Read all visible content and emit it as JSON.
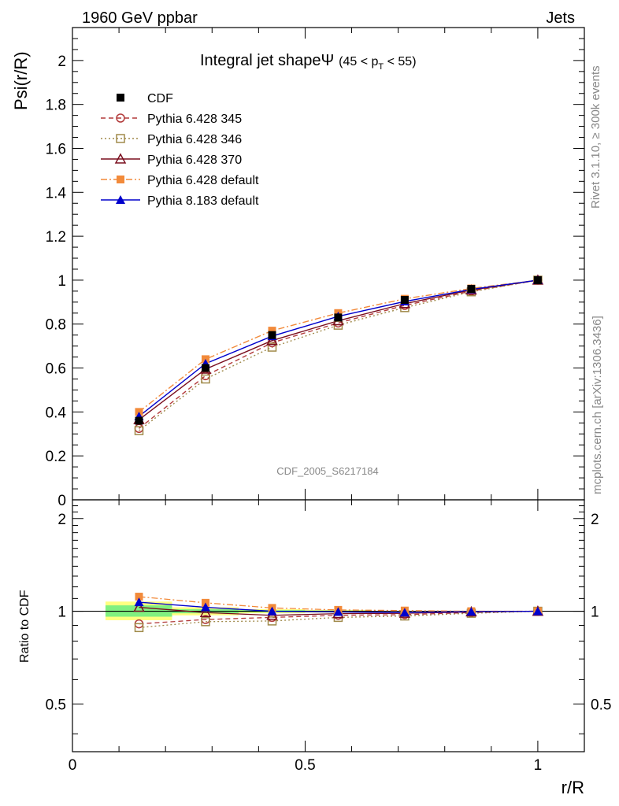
{
  "header": {
    "left": "1960 GeV ppbar",
    "right": "Jets"
  },
  "side_labels": {
    "upper": "Rivet 3.1.10, ≥ 300k events",
    "lower": "mcplots.cern.ch [arXiv:1306.3436]"
  },
  "analysis_id": "CDF_2005_S6217184",
  "colors": {
    "cdf": "#000000",
    "p345": "#b23a3a",
    "p346": "#a08a4a",
    "p370": "#7a0e1e",
    "pdef": "#f28a3a",
    "p8": "#0000cc",
    "band_yellow": "#ffff80",
    "band_green": "#80f080"
  },
  "chart_data": [
    {
      "type": "line",
      "title": "Integral jet shapeΨ",
      "title_suffix": "(45 < p",
      "title_sub": "T",
      "title_end": " < 55)",
      "xlabel": "r/R",
      "ylabel": "Psi(r/R)",
      "xlim": [
        0,
        1.1
      ],
      "ylim": [
        0,
        2.15
      ],
      "yticks": [
        0,
        0.2,
        0.4,
        0.6,
        0.8,
        1,
        1.2,
        1.4,
        1.6,
        1.8,
        2
      ],
      "ytick_labels": [
        "0",
        "0.2",
        "0.4",
        "0.6",
        "0.8",
        "1",
        "1.2",
        "1.4",
        "1.6",
        "1.8",
        "2"
      ],
      "x": [
        0.143,
        0.286,
        0.429,
        0.571,
        0.714,
        0.857,
        1.0
      ],
      "series": [
        {
          "name": "CDF",
          "key": "cdf",
          "marker": "square-filled",
          "line": "none",
          "values": [
            0.36,
            0.6,
            0.75,
            0.83,
            0.91,
            0.96,
            1.0
          ]
        },
        {
          "name": "Pythia 6.428 345",
          "key": "p345",
          "marker": "circle-open",
          "line": "dashed",
          "values": [
            0.325,
            0.565,
            0.715,
            0.805,
            0.885,
            0.95,
            1.0
          ]
        },
        {
          "name": "Pythia 6.428 346",
          "key": "p346",
          "marker": "square-open",
          "line": "dotted",
          "values": [
            0.315,
            0.55,
            0.695,
            0.795,
            0.875,
            0.947,
            1.0
          ]
        },
        {
          "name": "Pythia 6.428 370",
          "key": "p370",
          "marker": "triangle-open",
          "line": "solid",
          "values": [
            0.365,
            0.595,
            0.725,
            0.815,
            0.893,
            0.955,
            1.0
          ]
        },
        {
          "name": "Pythia 6.428 default",
          "key": "pdef",
          "marker": "square-filled",
          "line": "dashdot",
          "values": [
            0.4,
            0.64,
            0.77,
            0.85,
            0.915,
            0.962,
            1.0
          ]
        },
        {
          "name": "Pythia 8.183 default",
          "key": "p8",
          "marker": "triangle-filled",
          "line": "solid",
          "values": [
            0.38,
            0.62,
            0.745,
            0.835,
            0.903,
            0.958,
            1.0
          ]
        }
      ]
    },
    {
      "type": "line",
      "ylabel": "Ratio to CDF",
      "xlabel": "r/R",
      "xlim": [
        0,
        1.1
      ],
      "ylim": [
        0.35,
        2.3
      ],
      "scale": "log",
      "yticks": [
        0.5,
        1,
        2
      ],
      "ytick_labels": [
        "0.5",
        "1",
        "2"
      ],
      "xticks": [
        0,
        0.5,
        1
      ],
      "xtick_labels": [
        "0",
        "0.5",
        "1"
      ],
      "x": [
        0.143,
        0.286,
        0.429,
        0.571,
        0.714,
        0.857,
        1.0
      ],
      "bands": [
        {
          "x0": 0.071,
          "x1": 0.214,
          "yellow": [
            0.935,
            1.075
          ],
          "green": [
            0.96,
            1.045
          ]
        },
        {
          "x0": 0.214,
          "x1": 0.357,
          "yellow": [
            0.97,
            1.03
          ],
          "green": [
            0.985,
            1.015
          ]
        },
        {
          "x0": 0.357,
          "x1": 0.5,
          "yellow": [
            0.985,
            1.015
          ],
          "green": [
            0.992,
            1.008
          ]
        },
        {
          "x0": 0.5,
          "x1": 0.643,
          "yellow": [
            0.99,
            1.01
          ],
          "green": [
            0.995,
            1.005
          ]
        }
      ],
      "series": [
        {
          "name": "Pythia 6.428 345",
          "key": "p345",
          "marker": "circle-open",
          "line": "dashed",
          "values": [
            0.91,
            0.94,
            0.955,
            0.97,
            0.975,
            0.99,
            1.0
          ]
        },
        {
          "name": "Pythia 6.428 346",
          "key": "p346",
          "marker": "square-open",
          "line": "dotted",
          "values": [
            0.885,
            0.925,
            0.93,
            0.955,
            0.965,
            0.985,
            1.0
          ]
        },
        {
          "name": "Pythia 6.428 370",
          "key": "p370",
          "marker": "triangle-open",
          "line": "solid",
          "values": [
            1.03,
            0.99,
            0.97,
            0.982,
            0.985,
            0.995,
            1.0
          ]
        },
        {
          "name": "Pythia 6.428 default",
          "key": "pdef",
          "marker": "square-filled",
          "line": "dashdot",
          "values": [
            1.115,
            1.065,
            1.025,
            1.01,
            1.005,
            1.0,
            1.0
          ]
        },
        {
          "name": "Pythia 8.183 default",
          "key": "p8",
          "marker": "triangle-filled",
          "line": "solid",
          "values": [
            1.07,
            1.03,
            1.0,
            0.995,
            0.99,
            0.997,
            1.0
          ]
        }
      ]
    }
  ]
}
